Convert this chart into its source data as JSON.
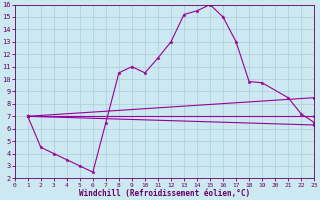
{
  "xlabel": "Windchill (Refroidissement éolien,°C)",
  "bg_color": "#cce8f0",
  "grid_color": "#aaccd8",
  "line_color": "#990099",
  "spine_color": "#660066",
  "xlim": [
    0,
    23
  ],
  "ylim": [
    2,
    16
  ],
  "xticks": [
    0,
    1,
    2,
    3,
    4,
    5,
    6,
    7,
    8,
    9,
    10,
    11,
    12,
    13,
    14,
    15,
    16,
    17,
    18,
    19,
    20,
    21,
    22,
    23
  ],
  "yticks": [
    2,
    3,
    4,
    5,
    6,
    7,
    8,
    9,
    10,
    11,
    12,
    13,
    14,
    15,
    16
  ],
  "series": [
    {
      "x": [
        1,
        2,
        3,
        4,
        5,
        6,
        7,
        8,
        9,
        10,
        11,
        12,
        13,
        14,
        15,
        16,
        17,
        18,
        19,
        21,
        22,
        23
      ],
      "y": [
        7.0,
        4.5,
        4.0,
        3.5,
        3.0,
        2.5,
        6.5,
        10.5,
        11.0,
        10.5,
        11.7,
        13.0,
        15.2,
        15.5,
        16.0,
        15.0,
        13.0,
        9.8,
        9.7,
        8.5,
        7.2,
        6.5
      ]
    },
    {
      "x": [
        1,
        23
      ],
      "y": [
        7.0,
        6.3
      ]
    },
    {
      "x": [
        1,
        23
      ],
      "y": [
        7.0,
        7.0
      ]
    },
    {
      "x": [
        1,
        23
      ],
      "y": [
        7.0,
        8.5
      ]
    }
  ]
}
